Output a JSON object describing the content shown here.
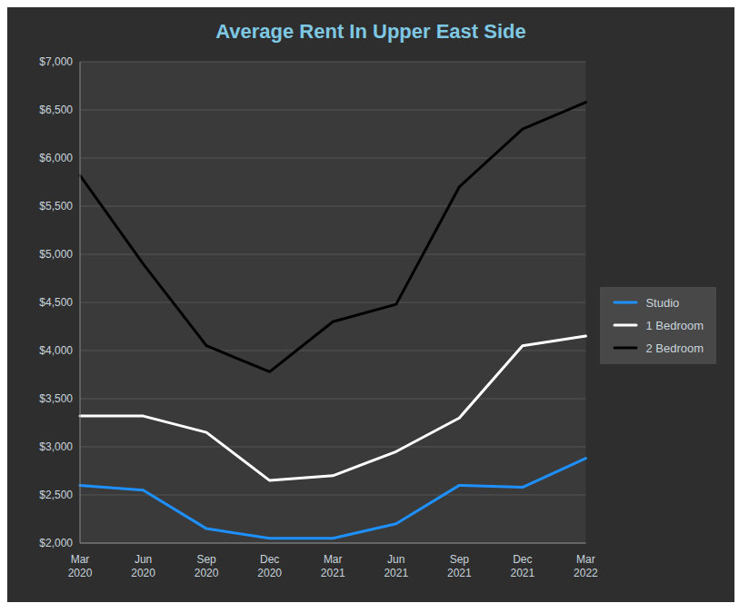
{
  "chart_data": {
    "type": "line",
    "title": "Average Rent In Upper East Side",
    "categories": [
      "Mar\n2020",
      "Jun\n2020",
      "Sep\n2020",
      "Dec\n2020",
      "Mar\n2021",
      "Jun\n2021",
      "Sep\n2021",
      "Dec\n2021",
      "Mar\n2022"
    ],
    "series": [
      {
        "name": "Studio",
        "color": "#1e90ff",
        "values": [
          2600,
          2550,
          2150,
          2050,
          2050,
          2200,
          2600,
          2580,
          2880
        ]
      },
      {
        "name": "1 Bedroom",
        "color": "#ffffff",
        "values": [
          3320,
          3320,
          3150,
          2650,
          2700,
          2950,
          3300,
          4050,
          4150
        ]
      },
      {
        "name": "2 Bedroom",
        "color": "#000000",
        "values": [
          5820,
          4900,
          4050,
          3780,
          4300,
          4480,
          5700,
          6300,
          6580
        ]
      }
    ],
    "ylim": [
      2000,
      7000
    ],
    "yticks": [
      {
        "value": 2000,
        "label": "$2,000"
      },
      {
        "value": 2500,
        "label": "$2,500"
      },
      {
        "value": 3000,
        "label": "$3,000"
      },
      {
        "value": 3500,
        "label": "$3,500"
      },
      {
        "value": 4000,
        "label": "$4,000"
      },
      {
        "value": 4500,
        "label": "$4,500"
      },
      {
        "value": 5000,
        "label": "$5,000"
      },
      {
        "value": 5500,
        "label": "$5,500"
      },
      {
        "value": 6000,
        "label": "$6,000"
      },
      {
        "value": 6500,
        "label": "$6,500"
      },
      {
        "value": 7000,
        "label": "$7,000"
      }
    ],
    "grid": true,
    "legend": "right"
  }
}
